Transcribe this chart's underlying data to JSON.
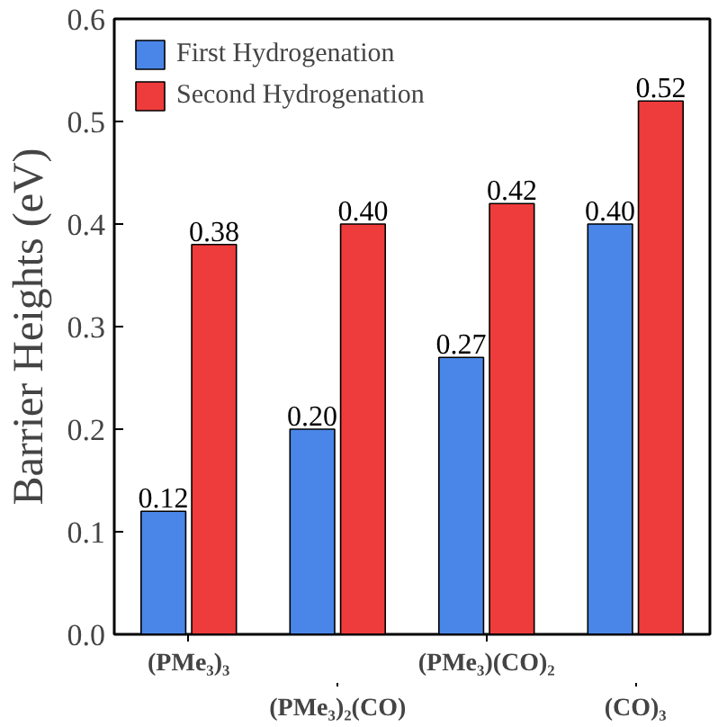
{
  "chart_data": {
    "type": "bar",
    "ylabel": "Barrier Heights (eV)",
    "categories": [
      "(PMe₃)₃",
      "(PMe₃)₂(CO)",
      "(PMe₃)(CO)₂",
      "(CO)₃"
    ],
    "series": [
      {
        "name": "First Hydrogenation",
        "color": "#4a86e8",
        "values": [
          0.12,
          0.2,
          0.27,
          0.4
        ],
        "value_labels": [
          "0.12",
          "0.20",
          "0.27",
          "0.40"
        ]
      },
      {
        "name": "Second Hydrogenation",
        "color": "#ee3b3b",
        "values": [
          0.38,
          0.4,
          0.42,
          0.52
        ],
        "value_labels": [
          "0.38",
          "0.40",
          "0.42",
          "0.52"
        ]
      }
    ],
    "ylim": [
      0,
      0.6
    ],
    "yticks": [
      {
        "value": 0,
        "label": "0.0"
      },
      0.1,
      0.2,
      0.3,
      0.4,
      0.5,
      0.6
    ],
    "grid": false,
    "legend": "top left"
  }
}
